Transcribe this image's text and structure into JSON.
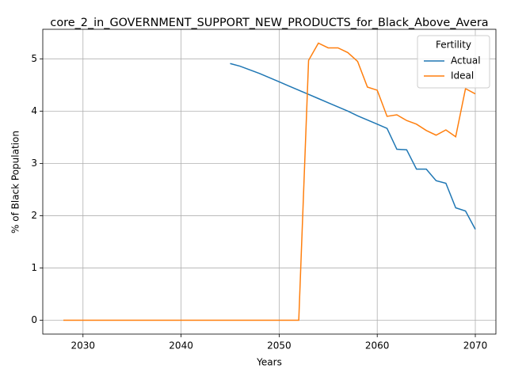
{
  "chart_data": {
    "type": "line",
    "title": "core_2_in_GOVERNMENT_SUPPORT_NEW_PRODUCTS_for_Black_Above_Avera",
    "x_label": "Years",
    "y_label": "% of Black Population",
    "x": [
      2028,
      2029,
      2030,
      2031,
      2032,
      2033,
      2034,
      2035,
      2036,
      2037,
      2038,
      2039,
      2040,
      2041,
      2042,
      2043,
      2044,
      2045,
      2046,
      2047,
      2048,
      2049,
      2050,
      2051,
      2052,
      2053,
      2054,
      2055,
      2056,
      2057,
      2058,
      2059,
      2060,
      2061,
      2062,
      2063,
      2064,
      2065,
      2066,
      2067,
      2068,
      2069,
      2070
    ],
    "series": [
      {
        "name": "Actual",
        "color": "#1f77b4",
        "values": [
          null,
          null,
          null,
          null,
          null,
          null,
          null,
          null,
          null,
          null,
          null,
          null,
          null,
          null,
          null,
          null,
          null,
          4.91,
          4.86,
          4.79,
          4.72,
          4.64,
          4.56,
          4.48,
          4.4,
          4.32,
          4.24,
          4.16,
          4.08,
          4.0,
          3.91,
          3.83,
          3.75,
          3.67,
          3.27,
          3.26,
          2.89,
          2.89,
          2.67,
          2.62,
          2.15,
          2.09,
          1.74
        ]
      },
      {
        "name": "Ideal",
        "color": "#ff7f0e",
        "values": [
          0,
          0,
          0,
          0,
          0,
          0,
          0,
          0,
          0,
          0,
          0,
          0,
          0,
          0,
          0,
          0,
          0,
          0,
          0,
          0,
          0,
          0,
          0,
          0,
          0,
          4.97,
          5.3,
          5.21,
          5.21,
          5.12,
          4.95,
          4.46,
          4.4,
          3.9,
          3.93,
          3.82,
          3.75,
          3.63,
          3.54,
          3.64,
          3.51,
          4.43,
          4.33
        ]
      }
    ],
    "xlim": [
      2025.9,
      2072.1
    ],
    "xticks": [
      2030,
      2040,
      2050,
      2060,
      2070
    ],
    "ylim": [
      -0.265,
      5.565
    ],
    "yticks": [
      0,
      1,
      2,
      3,
      4,
      5
    ],
    "grid": true,
    "legend_title": "Fertility",
    "legend_position": "upper-right"
  }
}
